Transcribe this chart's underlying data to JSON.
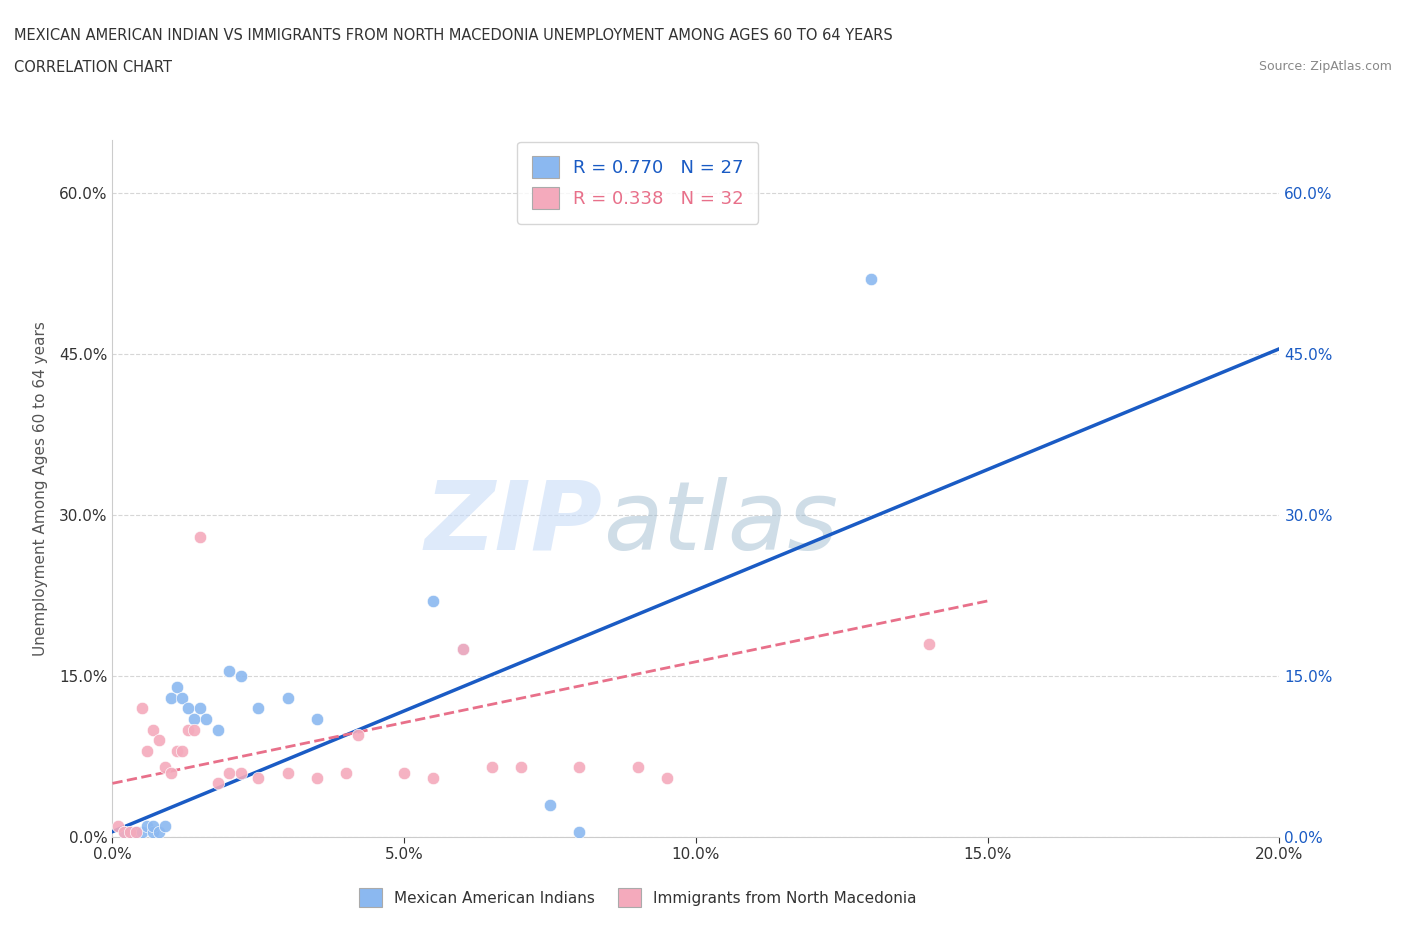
{
  "title_line1": "MEXICAN AMERICAN INDIAN VS IMMIGRANTS FROM NORTH MACEDONIA UNEMPLOYMENT AMONG AGES 60 TO 64 YEARS",
  "title_line2": "CORRELATION CHART",
  "source_text": "Source: ZipAtlas.com",
  "ylabel": "Unemployment Among Ages 60 to 64 years",
  "watermark_zip": "ZIP",
  "watermark_atlas": "atlas",
  "blue_label": "Mexican American Indians",
  "pink_label": "Immigrants from North Macedonia",
  "blue_R": 0.77,
  "blue_N": 27,
  "pink_R": 0.338,
  "pink_N": 32,
  "xlim": [
    0.0,
    0.2
  ],
  "ylim": [
    0.0,
    0.65
  ],
  "xticks": [
    0.0,
    0.05,
    0.1,
    0.15,
    0.2
  ],
  "yticks": [
    0.0,
    0.15,
    0.3,
    0.45,
    0.6
  ],
  "blue_color": "#8BB8F0",
  "pink_color": "#F4AABC",
  "blue_line_color": "#1A5BC4",
  "pink_line_color": "#E8708A",
  "blue_x": [
    0.002,
    0.003,
    0.004,
    0.005,
    0.006,
    0.007,
    0.007,
    0.008,
    0.009,
    0.01,
    0.011,
    0.012,
    0.013,
    0.014,
    0.015,
    0.016,
    0.018,
    0.02,
    0.022,
    0.025,
    0.03,
    0.035,
    0.055,
    0.06,
    0.075,
    0.08,
    0.13
  ],
  "blue_y": [
    0.005,
    0.005,
    0.005,
    0.005,
    0.01,
    0.005,
    0.01,
    0.005,
    0.01,
    0.13,
    0.14,
    0.13,
    0.12,
    0.11,
    0.12,
    0.11,
    0.1,
    0.155,
    0.15,
    0.12,
    0.13,
    0.11,
    0.22,
    0.175,
    0.03,
    0.005,
    0.52
  ],
  "pink_x": [
    0.001,
    0.002,
    0.003,
    0.004,
    0.005,
    0.006,
    0.007,
    0.008,
    0.009,
    0.01,
    0.011,
    0.012,
    0.013,
    0.014,
    0.015,
    0.018,
    0.02,
    0.022,
    0.025,
    0.03,
    0.035,
    0.04,
    0.042,
    0.05,
    0.055,
    0.06,
    0.065,
    0.07,
    0.08,
    0.09,
    0.095,
    0.14
  ],
  "pink_y": [
    0.01,
    0.005,
    0.005,
    0.005,
    0.12,
    0.08,
    0.1,
    0.09,
    0.065,
    0.06,
    0.08,
    0.08,
    0.1,
    0.1,
    0.28,
    0.05,
    0.06,
    0.06,
    0.055,
    0.06,
    0.055,
    0.06,
    0.095,
    0.06,
    0.055,
    0.175,
    0.065,
    0.065,
    0.065,
    0.065,
    0.055,
    0.18
  ],
  "blue_line_x": [
    0.0,
    0.2
  ],
  "blue_line_y": [
    0.005,
    0.455
  ],
  "pink_line_x": [
    0.0,
    0.15
  ],
  "pink_line_y": [
    0.05,
    0.22
  ],
  "bg_color": "#FFFFFF",
  "grid_color": "#CCCCCC",
  "left_tick_color": "#333333",
  "right_tick_color": "#1A5BC4",
  "bottom_tick_color": "#333333"
}
